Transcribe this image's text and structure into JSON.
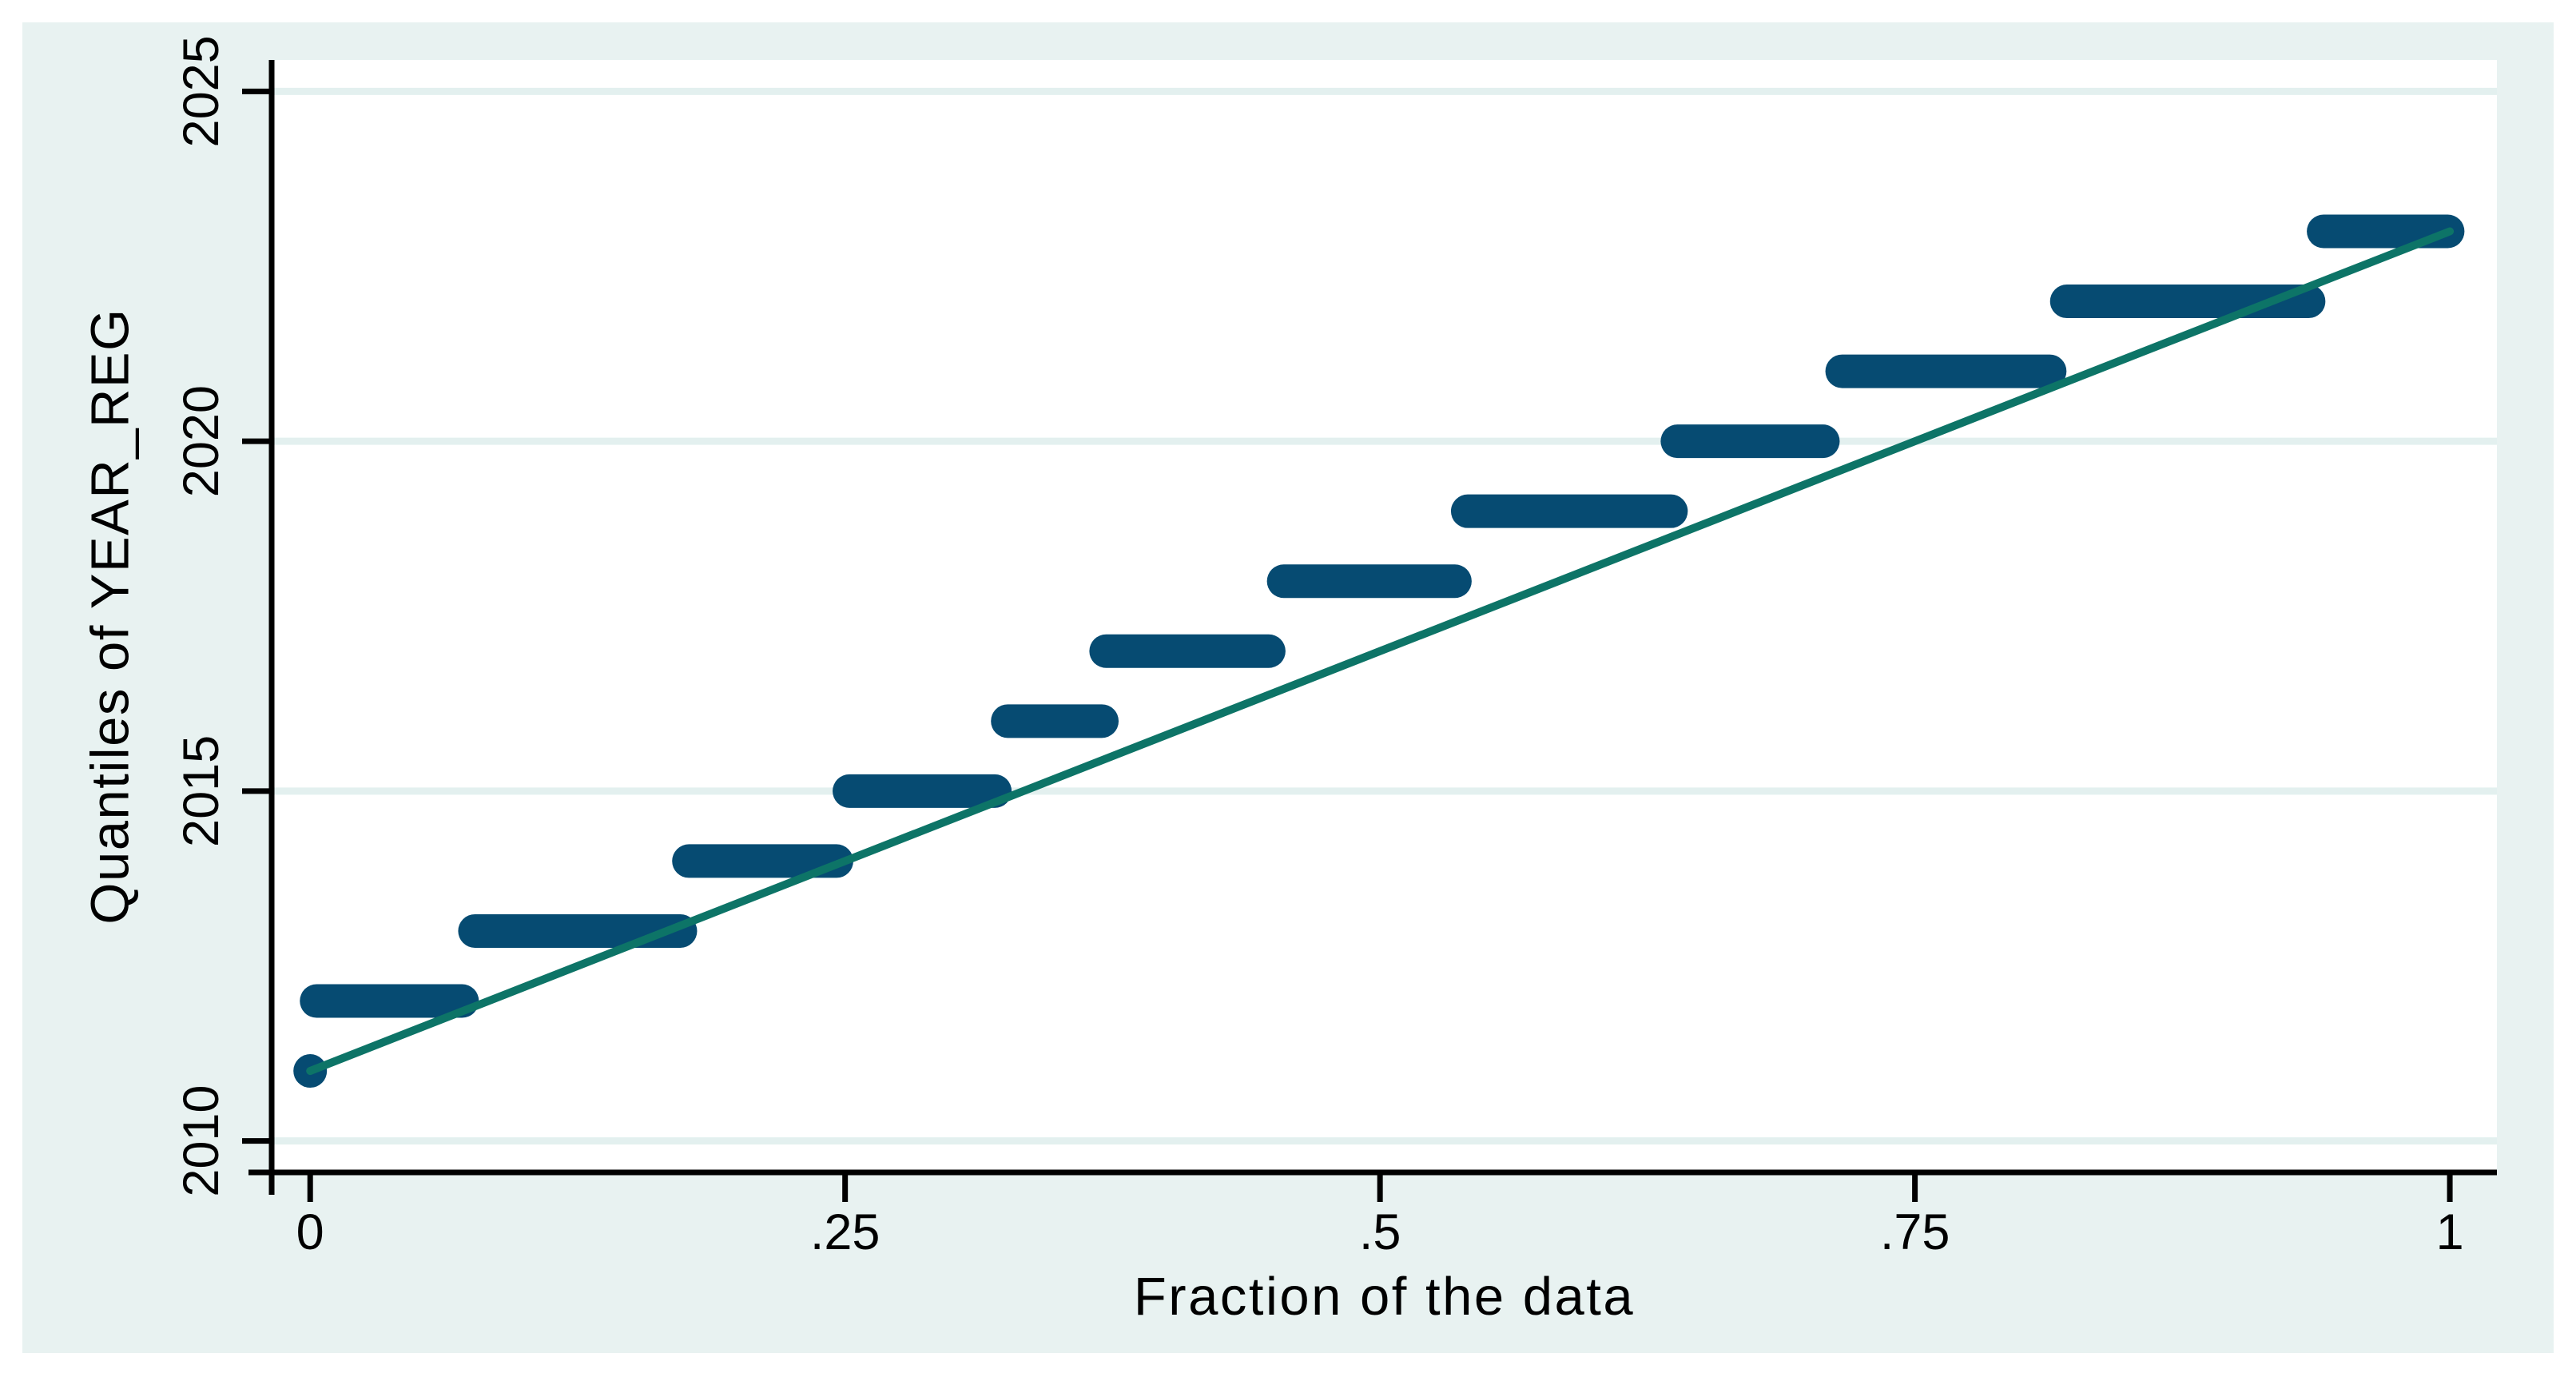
{
  "figure": {
    "outer_background": "#ffffff",
    "figure_background": "#e8f2f1",
    "plot_background": "#ffffff",
    "grid_color": "#e3f0ef",
    "axis_color": "#000000",
    "marker_color": "#064b72",
    "reference_line_color": "#0d7467"
  },
  "chart_data": {
    "type": "scatter",
    "subtype": "quantile-step-plot",
    "title": "",
    "xlabel": "Fraction of the data",
    "ylabel": "Quantiles of YEAR_REG",
    "grid": "horizontal-only",
    "legend": "none",
    "xlim": [
      -0.018,
      1.022
    ],
    "ylim": [
      2009.55,
      2025.45
    ],
    "x_ticks": [
      0,
      0.25,
      0.5,
      0.75,
      1
    ],
    "x_tick_labels": [
      "0",
      ".25",
      ".5",
      ".75",
      "1"
    ],
    "y_ticks": [
      2010,
      2015,
      2020,
      2025
    ],
    "y_tick_labels": [
      "2010",
      "2015",
      "2020",
      "2025"
    ],
    "quantile_runs": [
      {
        "year": 2011,
        "frac_start": 0.0,
        "frac_end": 0.0
      },
      {
        "year": 2012,
        "frac_start": 0.003,
        "frac_end": 0.071
      },
      {
        "year": 2013,
        "frac_start": 0.077,
        "frac_end": 0.173
      },
      {
        "year": 2014,
        "frac_start": 0.177,
        "frac_end": 0.246
      },
      {
        "year": 2015,
        "frac_start": 0.252,
        "frac_end": 0.32
      },
      {
        "year": 2016,
        "frac_start": 0.326,
        "frac_end": 0.37
      },
      {
        "year": 2017,
        "frac_start": 0.372,
        "frac_end": 0.448
      },
      {
        "year": 2018,
        "frac_start": 0.455,
        "frac_end": 0.535
      },
      {
        "year": 2019,
        "frac_start": 0.541,
        "frac_end": 0.636
      },
      {
        "year": 2020,
        "frac_start": 0.639,
        "frac_end": 0.707
      },
      {
        "year": 2021,
        "frac_start": 0.716,
        "frac_end": 0.813
      },
      {
        "year": 2022,
        "frac_start": 0.821,
        "frac_end": 0.934
      },
      {
        "year": 2023,
        "frac_start": 0.941,
        "frac_end": 0.999
      }
    ],
    "reference_line": {
      "x1": 0.0,
      "y1": 2011,
      "x2": 1.0,
      "y2": 2023
    }
  }
}
